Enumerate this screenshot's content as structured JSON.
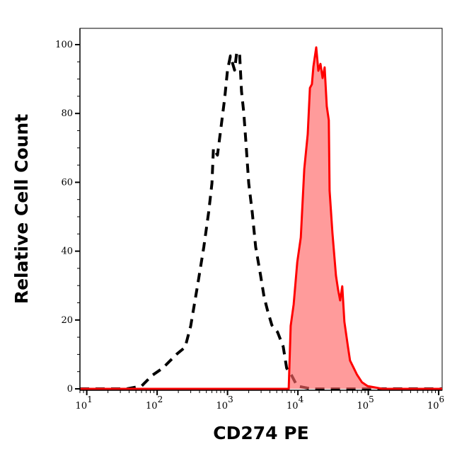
{
  "chart_data": {
    "type": "line",
    "title": "",
    "xlabel": "CD274 PE",
    "ylabel": "Relative Cell Count",
    "x_scale": "log",
    "xlim": [
      8,
      1120000
    ],
    "ylim": [
      0,
      105
    ],
    "x_ticks": [
      {
        "base": "10",
        "exp": "1"
      },
      {
        "base": "10",
        "exp": "2"
      },
      {
        "base": "10",
        "exp": "3"
      },
      {
        "base": "10",
        "exp": "4"
      },
      {
        "base": "10",
        "exp": "5"
      },
      {
        "base": "10",
        "exp": "6"
      }
    ],
    "y_ticks": [
      "0",
      "20",
      "40",
      "60",
      "80",
      "100"
    ],
    "grid": false,
    "legend": "none",
    "series": [
      {
        "style": "dashed",
        "color": "#000000",
        "filled": false,
        "x": [
          8,
          19,
          37,
          60,
          85,
          120,
          190,
          250,
          300,
          380,
          460,
          540,
          600,
          630,
          720,
          810,
          910,
          1000,
          1100,
          1260,
          1350,
          1480,
          1580,
          1700,
          1820,
          2000,
          2240,
          2510,
          2950,
          3310,
          3720,
          4270,
          5130,
          6170,
          6920,
          8130,
          9770,
          15500,
          1120000
        ],
        "y": [
          0,
          0,
          0,
          0.8,
          3.9,
          6.0,
          10.1,
          12.1,
          18.3,
          30.7,
          41.2,
          51.4,
          59.7,
          69.9,
          67.9,
          76.1,
          84.4,
          92.6,
          96.7,
          92.6,
          97.7,
          97.7,
          86.4,
          80.2,
          72.0,
          59.7,
          51.4,
          41.2,
          32.9,
          26.7,
          22.6,
          18.5,
          16.5,
          12.3,
          6.0,
          3.9,
          0.8,
          0,
          0
        ]
      },
      {
        "style": "solid",
        "color": "#ff0000",
        "fill_color": "#ff6666",
        "filled": true,
        "x": [
          8,
          7400,
          7900,
          8700,
          9800,
          11000,
          12300,
          13800,
          14800,
          15800,
          16600,
          18200,
          19500,
          20900,
          22400,
          24000,
          25700,
          27500,
          28200,
          30900,
          34700,
          37200,
          39800,
          42700,
          45700,
          51300,
          55000,
          61700,
          69200,
          81300,
          97700,
          126000,
          158000,
          1120000
        ],
        "y": [
          0,
          0,
          18.3,
          24.5,
          36.8,
          44.0,
          63.8,
          74.0,
          87.4,
          88.5,
          93.6,
          99.2,
          92.4,
          94.4,
          90.3,
          93.4,
          82.1,
          78.0,
          57.6,
          45.3,
          32.9,
          28.8,
          25.7,
          29.8,
          19.5,
          12.3,
          8.2,
          6.2,
          4.1,
          1.9,
          0.8,
          0.4,
          0,
          0
        ]
      }
    ]
  }
}
